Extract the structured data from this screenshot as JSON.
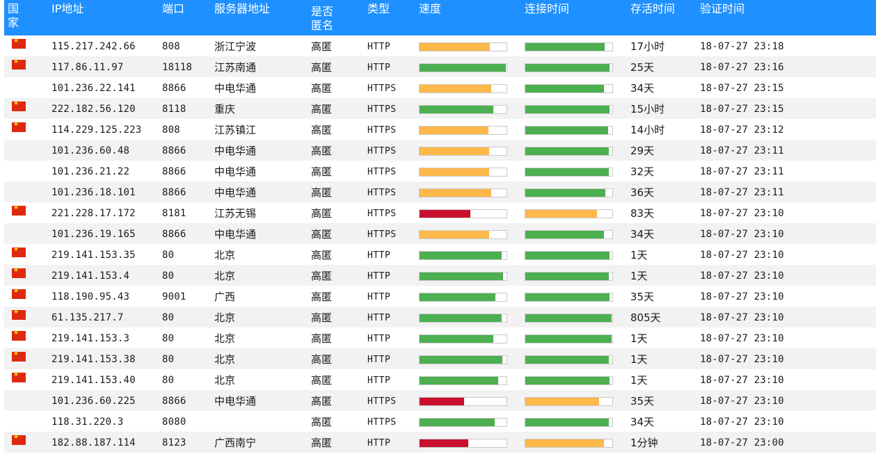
{
  "table": {
    "headers": {
      "country": "国家",
      "ip": "IP地址",
      "port": "端口",
      "server": "服务器地址",
      "anonymity": "是否匿名",
      "type": "类型",
      "speed": "速度",
      "connect_time": "连接时间",
      "alive_time": "存活时间",
      "verify_time": "验证时间"
    },
    "colors": {
      "header_bg": "#1e90ff",
      "alt_row": "#f2f2f2",
      "green": "#4caf50",
      "orange": "#ffb84a",
      "red": "#c8102e"
    },
    "rows": [
      {
        "flag": "cn-flag-icon",
        "ip": "115.217.242.66",
        "port": "808",
        "server": "浙江宁波",
        "anonymity": "高匿",
        "type": "HTTP",
        "speed_level": 0.81,
        "speed_color": "orange",
        "connect_level": 0.91,
        "connect_color": "green",
        "alive": "17小时",
        "verify": "18-07-27 23:18"
      },
      {
        "flag": "cn-flag-icon",
        "ip": "117.86.11.97",
        "port": "18118",
        "server": "江苏南通",
        "anonymity": "高匿",
        "type": "HTTP",
        "speed_level": 0.99,
        "speed_color": "green",
        "connect_level": 0.97,
        "connect_color": "green",
        "alive": "25天",
        "verify": "18-07-27 23:16"
      },
      {
        "flag": "",
        "ip": "101.236.22.141",
        "port": "8866",
        "server": "中电华通",
        "anonymity": "高匿",
        "type": "HTTPS",
        "speed_level": 0.82,
        "speed_color": "orange",
        "connect_level": 0.9,
        "connect_color": "green",
        "alive": "34天",
        "verify": "18-07-27 23:15"
      },
      {
        "flag": "cn-flag-icon",
        "ip": "222.182.56.120",
        "port": "8118",
        "server": "重庆",
        "anonymity": "高匿",
        "type": "HTTPS",
        "speed_level": 0.85,
        "speed_color": "green",
        "connect_level": 0.97,
        "connect_color": "green",
        "alive": "15小时",
        "verify": "18-07-27 23:15"
      },
      {
        "flag": "cn-flag-icon",
        "ip": "114.229.125.223",
        "port": "808",
        "server": "江苏镇江",
        "anonymity": "高匿",
        "type": "HTTPS",
        "speed_level": 0.79,
        "speed_color": "orange",
        "connect_level": 0.95,
        "connect_color": "green",
        "alive": "14小时",
        "verify": "18-07-27 23:12"
      },
      {
        "flag": "",
        "ip": "101.236.60.48",
        "port": "8866",
        "server": "中电华通",
        "anonymity": "高匿",
        "type": "HTTPS",
        "speed_level": 0.8,
        "speed_color": "orange",
        "connect_level": 0.96,
        "connect_color": "green",
        "alive": "29天",
        "verify": "18-07-27 23:11"
      },
      {
        "flag": "",
        "ip": "101.236.21.22",
        "port": "8866",
        "server": "中电华通",
        "anonymity": "高匿",
        "type": "HTTPS",
        "speed_level": 0.8,
        "speed_color": "orange",
        "connect_level": 0.96,
        "connect_color": "green",
        "alive": "32天",
        "verify": "18-07-27 23:11"
      },
      {
        "flag": "",
        "ip": "101.236.18.101",
        "port": "8866",
        "server": "中电华通",
        "anonymity": "高匿",
        "type": "HTTPS",
        "speed_level": 0.82,
        "speed_color": "orange",
        "connect_level": 0.92,
        "connect_color": "green",
        "alive": "36天",
        "verify": "18-07-27 23:11"
      },
      {
        "flag": "cn-flag-icon",
        "ip": "221.228.17.172",
        "port": "8181",
        "server": "江苏无锡",
        "anonymity": "高匿",
        "type": "HTTPS",
        "speed_level": 0.58,
        "speed_color": "red",
        "connect_level": 0.82,
        "connect_color": "orange",
        "alive": "83天",
        "verify": "18-07-27 23:10"
      },
      {
        "flag": "",
        "ip": "101.236.19.165",
        "port": "8866",
        "server": "中电华通",
        "anonymity": "高匿",
        "type": "HTTPS",
        "speed_level": 0.8,
        "speed_color": "orange",
        "connect_level": 0.9,
        "connect_color": "green",
        "alive": "34天",
        "verify": "18-07-27 23:10"
      },
      {
        "flag": "cn-flag-icon",
        "ip": "219.141.153.35",
        "port": "80",
        "server": "北京",
        "anonymity": "高匿",
        "type": "HTTP",
        "speed_level": 0.94,
        "speed_color": "green",
        "connect_level": 0.97,
        "connect_color": "green",
        "alive": "1天",
        "verify": "18-07-27 23:10"
      },
      {
        "flag": "cn-flag-icon",
        "ip": "219.141.153.4",
        "port": "80",
        "server": "北京",
        "anonymity": "高匿",
        "type": "HTTP",
        "speed_level": 0.96,
        "speed_color": "green",
        "connect_level": 0.96,
        "connect_color": "green",
        "alive": "1天",
        "verify": "18-07-27 23:10"
      },
      {
        "flag": "cn-flag-icon",
        "ip": "118.190.95.43",
        "port": "9001",
        "server": "广西",
        "anonymity": "高匿",
        "type": "HTTP",
        "speed_level": 0.87,
        "speed_color": "green",
        "connect_level": 0.97,
        "connect_color": "green",
        "alive": "35天",
        "verify": "18-07-27 23:10"
      },
      {
        "flag": "cn-flag-icon",
        "ip": "61.135.217.7",
        "port": "80",
        "server": "北京",
        "anonymity": "高匿",
        "type": "HTTP",
        "speed_level": 0.94,
        "speed_color": "green",
        "connect_level": 0.99,
        "connect_color": "green",
        "alive": "805天",
        "verify": "18-07-27 23:10"
      },
      {
        "flag": "cn-flag-icon",
        "ip": "219.141.153.3",
        "port": "80",
        "server": "北京",
        "anonymity": "高匿",
        "type": "HTTP",
        "speed_level": 0.85,
        "speed_color": "green",
        "connect_level": 0.99,
        "connect_color": "green",
        "alive": "1天",
        "verify": "18-07-27 23:10"
      },
      {
        "flag": "cn-flag-icon",
        "ip": "219.141.153.38",
        "port": "80",
        "server": "北京",
        "anonymity": "高匿",
        "type": "HTTP",
        "speed_level": 0.95,
        "speed_color": "green",
        "connect_level": 0.96,
        "connect_color": "green",
        "alive": "1天",
        "verify": "18-07-27 23:10"
      },
      {
        "flag": "cn-flag-icon",
        "ip": "219.141.153.40",
        "port": "80",
        "server": "北京",
        "anonymity": "高匿",
        "type": "HTTP",
        "speed_level": 0.9,
        "speed_color": "green",
        "connect_level": 0.97,
        "connect_color": "green",
        "alive": "1天",
        "verify": "18-07-27 23:10"
      },
      {
        "flag": "",
        "ip": "101.236.60.225",
        "port": "8866",
        "server": "中电华通",
        "anonymity": "高匿",
        "type": "HTTPS",
        "speed_level": 0.51,
        "speed_color": "red",
        "connect_level": 0.85,
        "connect_color": "orange",
        "alive": "35天",
        "verify": "18-07-27 23:10"
      },
      {
        "flag": "",
        "ip": "118.31.220.3",
        "port": "8080",
        "server": "",
        "anonymity": "高匿",
        "type": "HTTPS",
        "speed_level": 0.86,
        "speed_color": "green",
        "connect_level": 0.96,
        "connect_color": "green",
        "alive": "34天",
        "verify": "18-07-27 23:10"
      },
      {
        "flag": "cn-flag-icon",
        "ip": "182.88.187.114",
        "port": "8123",
        "server": "广西南宁",
        "anonymity": "高匿",
        "type": "HTTP",
        "speed_level": 0.56,
        "speed_color": "red",
        "connect_level": 0.9,
        "connect_color": "orange",
        "alive": "1分钟",
        "verify": "18-07-27 23:00"
      }
    ]
  }
}
